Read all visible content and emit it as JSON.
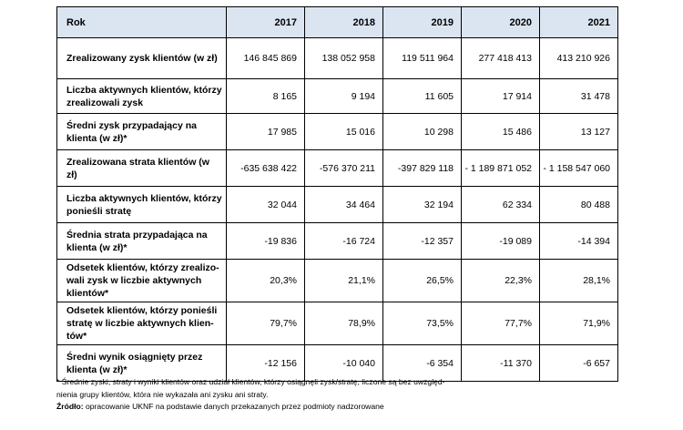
{
  "table": {
    "header_label": "Rok",
    "years": [
      "2017",
      "2018",
      "2019",
      "2020",
      "2021"
    ],
    "rows": [
      {
        "label": "Zrealizowany zysk klientów (w zł)",
        "values": [
          "146 845 869",
          "138 052 958",
          "119 511 964",
          "277 418 413",
          "413 210 926"
        ]
      },
      {
        "label": "Liczba aktywnych klientów, którzy zrealizowali zysk",
        "values": [
          "8 165",
          "9 194",
          "11 605",
          "17 914",
          "31 478"
        ]
      },
      {
        "label": "Średni zysk przypadający na klienta (w zł)*",
        "values": [
          "17 985",
          "15 016",
          "10 298",
          "15 486",
          "13 127"
        ]
      },
      {
        "label": "Zrealizowana strata klientów (w zł)",
        "values": [
          "-635 638 422",
          "-576 370 211",
          "-397 829 118",
          "- 1 189 871 052",
          "- 1 158 547 060"
        ]
      },
      {
        "label": "Liczba aktywnych klientów, którzy ponieśli stratę",
        "values": [
          "32 044",
          "34 464",
          "32 194",
          "62 334",
          "80 488"
        ]
      },
      {
        "label": "Średnia strata przypadająca na klienta (w zł)*",
        "values": [
          "-19 836",
          "-16 724",
          "-12 357",
          "-19 089",
          "-14 394"
        ]
      },
      {
        "label": "Odsetek klientów, którzy zrealizo-wali zysk w liczbie aktywnych klientów*",
        "values": [
          "20,3%",
          "21,1%",
          "26,5%",
          "22,3%",
          "28,1%"
        ]
      },
      {
        "label": "Odsetek klientów, którzy ponieśli stratę w liczbie aktywnych klien-tów*",
        "values": [
          "79,7%",
          "78,9%",
          "73,5%",
          "77,7%",
          "71,9%"
        ]
      },
      {
        "label": "Średni wynik osiągnięty przez klienta (w zł)*",
        "values": [
          "-12 156",
          "-10 040",
          "-6 354",
          "-11 370",
          "-6 657"
        ]
      }
    ]
  },
  "footnote": {
    "note_line1": "*  Średnie zyski, straty i wyniki klientów oraz udział klientów, którzy osiągnęli zysk/stratę, liczone są bez uwzględ-",
    "note_line2": "nienia grupy klientów, która nie wykazała ani zysku ani straty.",
    "source_label": "Źródło:",
    "source_text": " opracowanie UKNF na podstawie danych przekazanych przez podmioty nadzorowane"
  },
  "colors": {
    "header_bg": "#dbe5f1",
    "border": "#000000",
    "text": "#000000"
  }
}
